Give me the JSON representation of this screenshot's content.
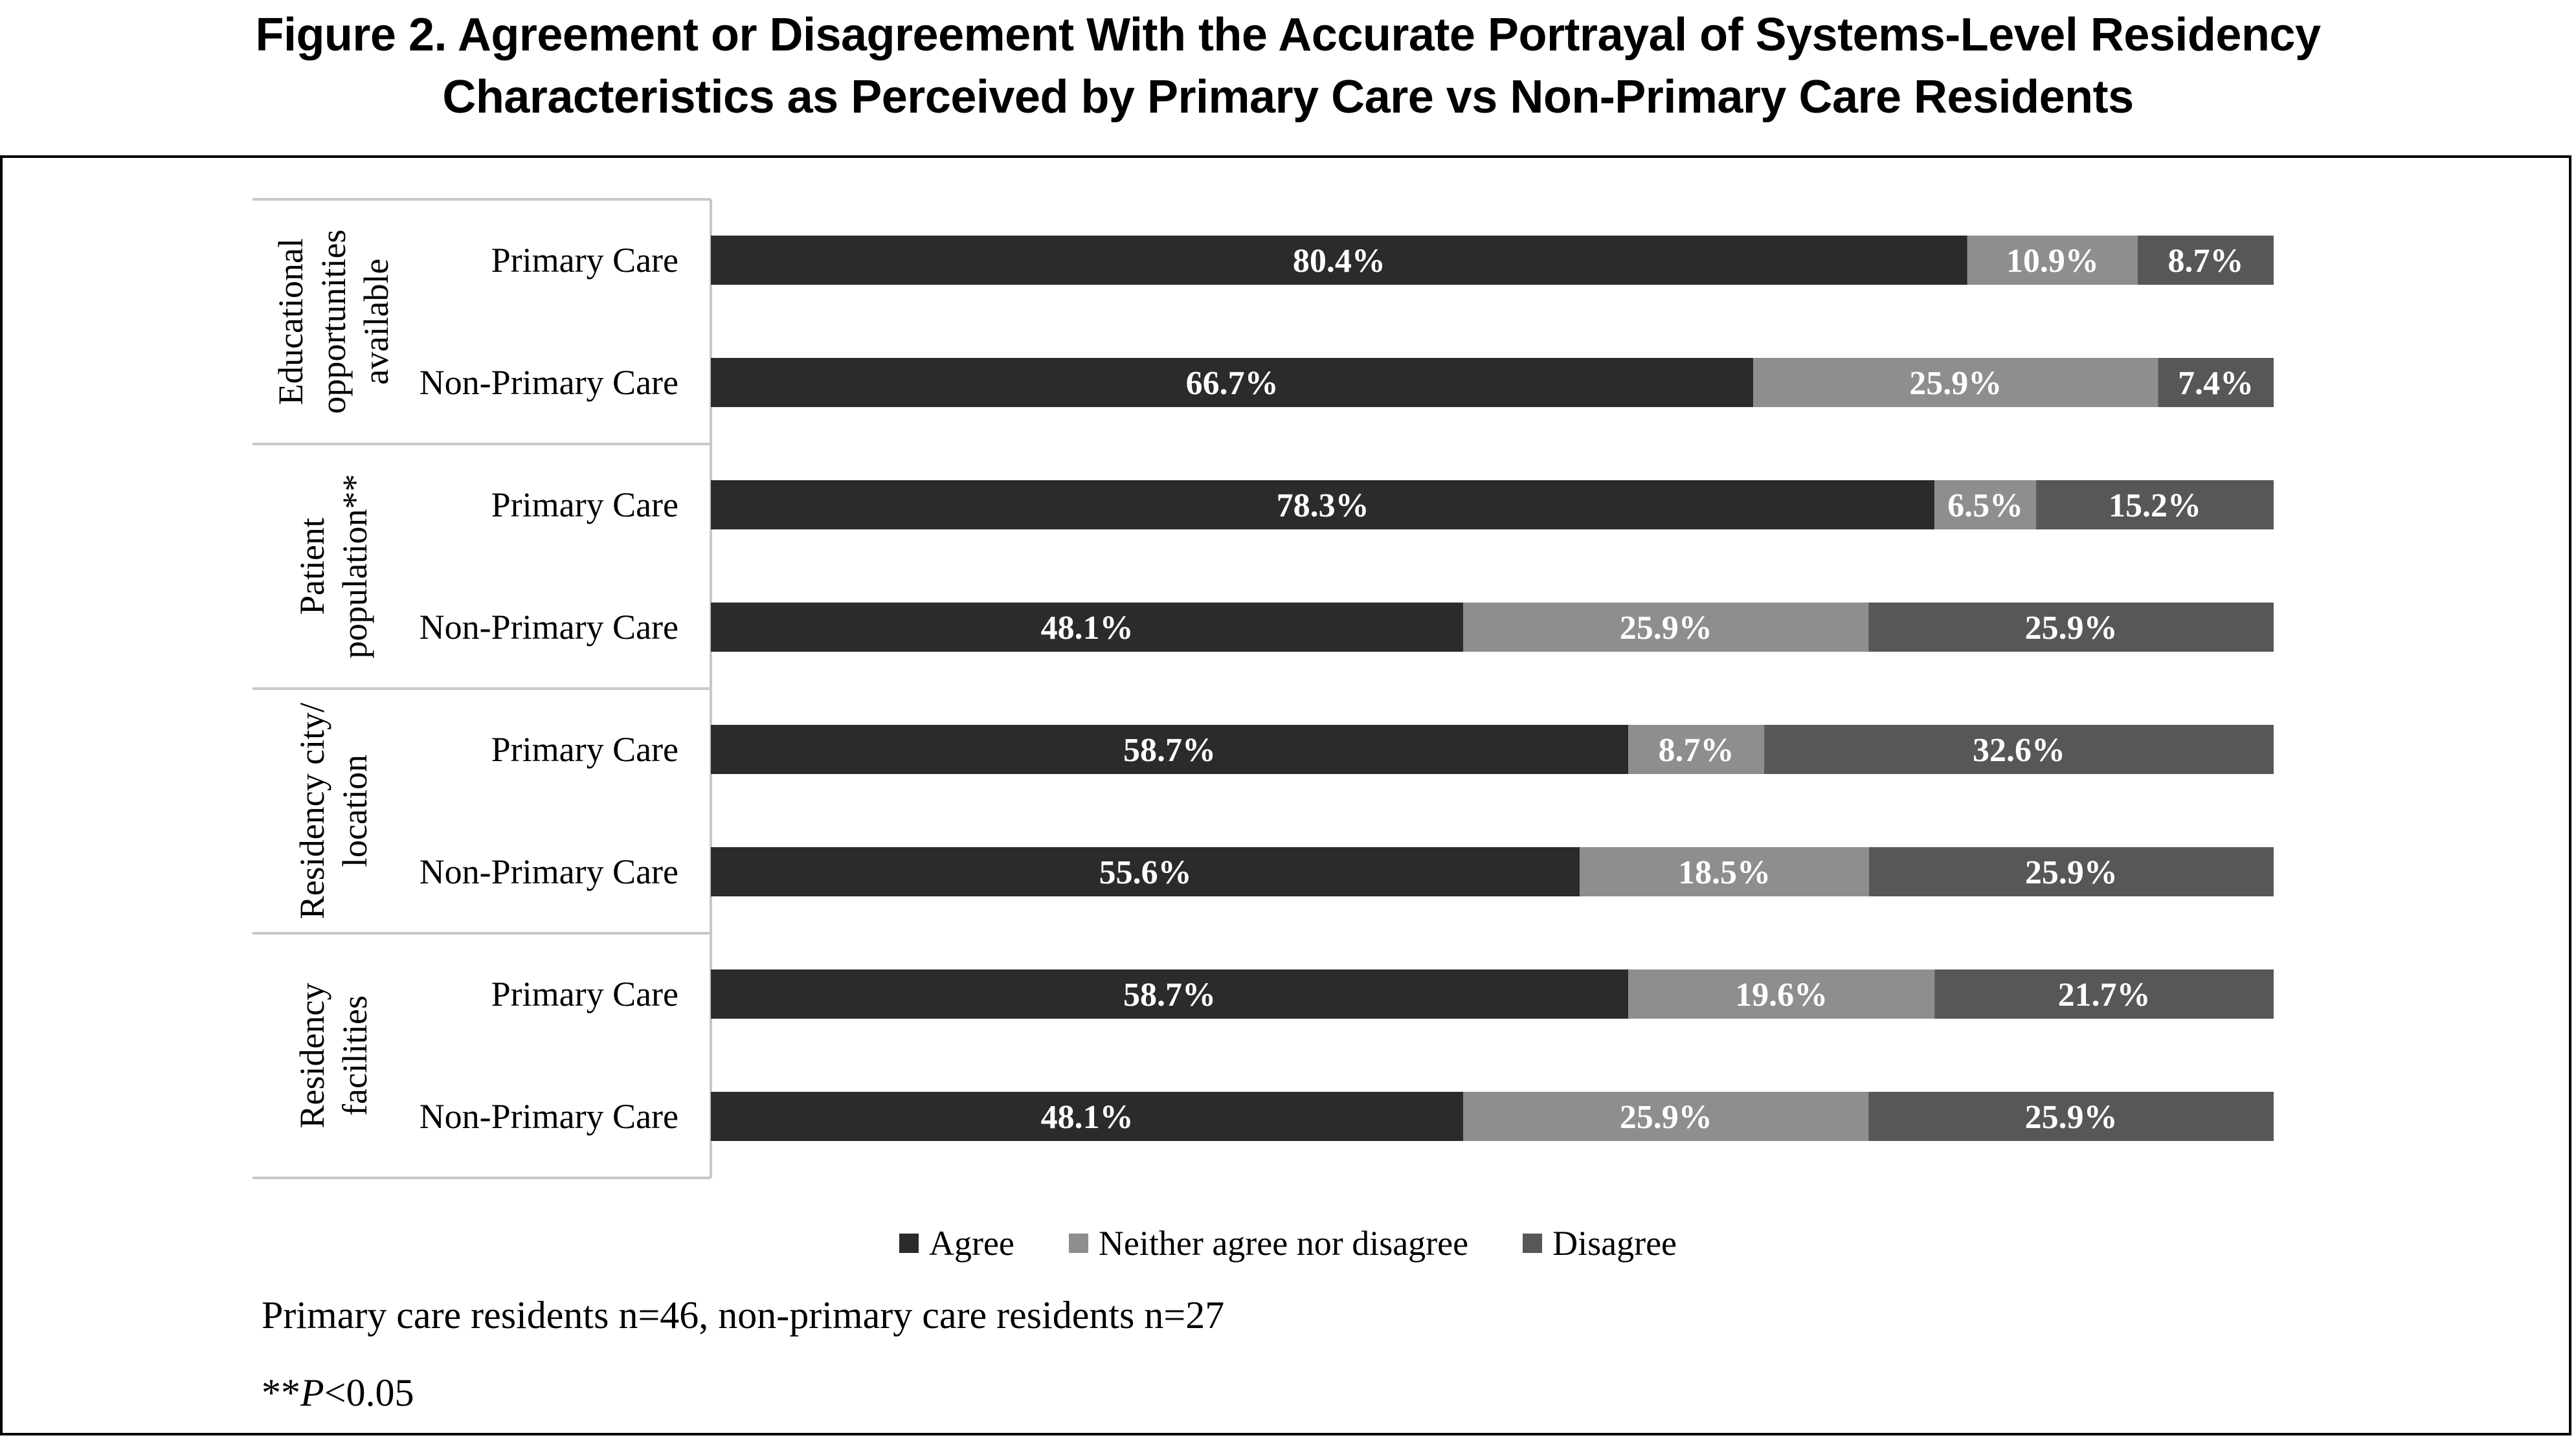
{
  "title_line1": "Figure 2. Agreement or Disagreement With the Accurate Portrayal of Systems-Level Residency",
  "title_line2": "Characteristics as Perceived by Primary Care vs Non-Primary Care Residents",
  "notes": {
    "sample": "Primary care residents n=46, non-primary care residents n=27",
    "sig_prefix": "**",
    "sig_p": "P",
    "sig_suffix": "<0.05"
  },
  "colors": {
    "agree": "#2b2b2b",
    "neither": "#8e8e8e",
    "disagree": "#575757",
    "label": "#ffffff"
  },
  "chart_data": {
    "type": "bar",
    "orientation": "horizontal",
    "stacked": "100%",
    "legend": "bottom",
    "series": [
      {
        "name": "Agree"
      },
      {
        "name": "Neither agree nor disagree"
      },
      {
        "name": "Disagree"
      }
    ],
    "groups": [
      {
        "label_lines": [
          "Educational",
          "opportunities",
          "available"
        ],
        "rows": [
          {
            "label": "Primary Care",
            "values": [
              80.4,
              10.9,
              8.7
            ],
            "labels": [
              "80.4%",
              "10.9%",
              "8.7%"
            ]
          },
          {
            "label": "Non-Primary Care",
            "values": [
              66.7,
              25.9,
              7.4
            ],
            "labels": [
              "66.7%",
              "25.9%",
              "7.4%"
            ]
          }
        ]
      },
      {
        "label_lines": [
          "Patient",
          "population**"
        ],
        "rows": [
          {
            "label": "Primary Care",
            "values": [
              78.3,
              6.5,
              15.2
            ],
            "labels": [
              "78.3%",
              "6.5%",
              "15.2%"
            ]
          },
          {
            "label": "Non-Primary Care",
            "values": [
              48.1,
              25.9,
              25.9
            ],
            "labels": [
              "48.1%",
              "25.9%",
              "25.9%"
            ]
          }
        ]
      },
      {
        "label_lines": [
          "Residency city/",
          "location"
        ],
        "rows": [
          {
            "label": "Primary Care",
            "values": [
              58.7,
              8.7,
              32.6
            ],
            "labels": [
              "58.7%",
              "8.7%",
              "32.6%"
            ]
          },
          {
            "label": "Non-Primary Care",
            "values": [
              55.6,
              18.5,
              25.9
            ],
            "labels": [
              "55.6%",
              "18.5%",
              "25.9%"
            ]
          }
        ]
      },
      {
        "label_lines": [
          "Residency",
          "facilities"
        ],
        "rows": [
          {
            "label": "Primary Care",
            "values": [
              58.7,
              19.6,
              21.7
            ],
            "labels": [
              "58.7%",
              "19.6%",
              "21.7%"
            ]
          },
          {
            "label": "Non-Primary Care",
            "values": [
              48.1,
              25.9,
              25.9
            ],
            "labels": [
              "48.1%",
              "25.9%",
              "25.9%"
            ]
          }
        ]
      }
    ]
  }
}
